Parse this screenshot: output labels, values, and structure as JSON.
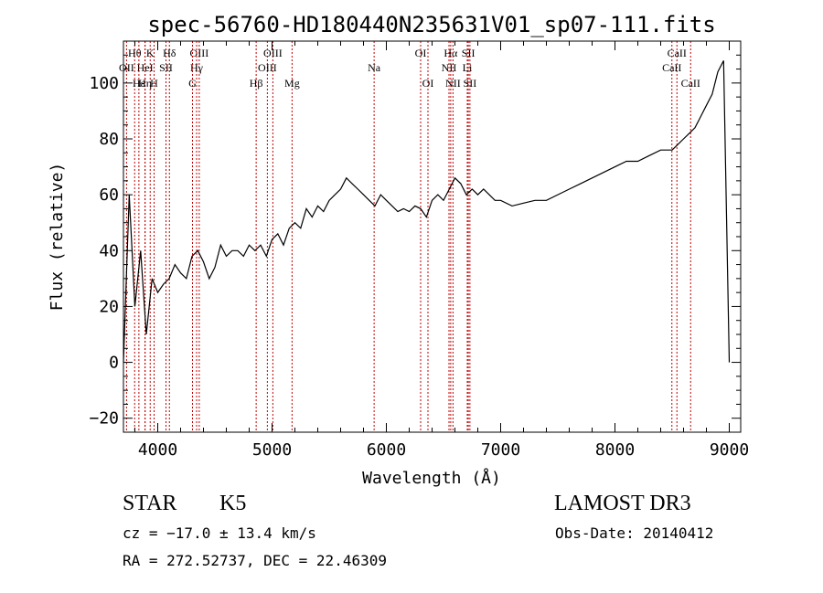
{
  "chart_data": {
    "type": "line",
    "title": "spec-56760-HD180440N235631V01_sp07-111.fits",
    "xlabel": "Wavelength (Å)",
    "ylabel": "Flux (relative)",
    "xlim": [
      3700,
      9100
    ],
    "ylim": [
      -25,
      115
    ],
    "xticks": [
      4000,
      5000,
      6000,
      7000,
      8000,
      9000
    ],
    "yticks": [
      -20,
      0,
      20,
      40,
      60,
      80,
      100
    ],
    "grid": false,
    "series": [
      {
        "name": "flux",
        "x": [
          3700,
          3750,
          3800,
          3850,
          3900,
          3950,
          4000,
          4050,
          4100,
          4150,
          4200,
          4250,
          4300,
          4350,
          4400,
          4450,
          4500,
          4550,
          4600,
          4650,
          4700,
          4750,
          4800,
          4850,
          4900,
          4950,
          5000,
          5050,
          5100,
          5150,
          5200,
          5250,
          5300,
          5350,
          5400,
          5450,
          5500,
          5550,
          5600,
          5650,
          5700,
          5750,
          5800,
          5850,
          5900,
          5950,
          6000,
          6050,
          6100,
          6150,
          6200,
          6250,
          6300,
          6350,
          6400,
          6450,
          6500,
          6550,
          6600,
          6650,
          6700,
          6750,
          6800,
          6850,
          6900,
          6950,
          7000,
          7100,
          7200,
          7300,
          7400,
          7500,
          7600,
          7700,
          7800,
          7900,
          8000,
          8100,
          8200,
          8300,
          8400,
          8500,
          8550,
          8600,
          8650,
          8700,
          8750,
          8800,
          8850,
          8900,
          8950,
          9000
        ],
        "y": [
          0,
          60,
          20,
          40,
          10,
          30,
          25,
          28,
          30,
          35,
          32,
          30,
          38,
          40,
          36,
          30,
          34,
          42,
          38,
          40,
          40,
          38,
          42,
          40,
          42,
          38,
          44,
          46,
          42,
          48,
          50,
          48,
          55,
          52,
          56,
          54,
          58,
          60,
          62,
          66,
          64,
          62,
          60,
          58,
          56,
          60,
          58,
          56,
          54,
          55,
          54,
          56,
          55,
          52,
          58,
          60,
          58,
          62,
          66,
          64,
          60,
          62,
          60,
          62,
          60,
          58,
          58,
          56,
          57,
          58,
          58,
          60,
          62,
          64,
          66,
          68,
          70,
          72,
          72,
          74,
          76,
          76,
          78,
          80,
          82,
          84,
          88,
          92,
          96,
          104,
          108,
          0
        ]
      }
    ],
    "spectral_lines": [
      {
        "label": "Hθ",
        "x": 3798,
        "row": 1
      },
      {
        "label": "K",
        "x": 3934,
        "row": 1
      },
      {
        "label": "Hδ",
        "x": 4102,
        "row": 1
      },
      {
        "label": "OIII",
        "x": 4363,
        "row": 1
      },
      {
        "label": "OIII",
        "x": 5007,
        "row": 1
      },
      {
        "label": "OI",
        "x": 6300,
        "row": 1
      },
      {
        "label": "Hα",
        "x": 6563,
        "row": 1
      },
      {
        "label": "SII",
        "x": 6717,
        "row": 1
      },
      {
        "label": "CaII",
        "x": 8542,
        "row": 1
      },
      {
        "label": "OII",
        "x": 3727,
        "row": 2
      },
      {
        "label": "HeI",
        "x": 3889,
        "row": 2
      },
      {
        "label": "SII",
        "x": 4072,
        "row": 2
      },
      {
        "label": "Hγ",
        "x": 4340,
        "row": 2
      },
      {
        "label": "OIII",
        "x": 4959,
        "row": 2
      },
      {
        "label": "Na",
        "x": 5893,
        "row": 2
      },
      {
        "label": "NII",
        "x": 6548,
        "row": 2
      },
      {
        "label": "Li",
        "x": 6708,
        "row": 2
      },
      {
        "label": "CaII",
        "x": 8498,
        "row": 2
      },
      {
        "label": "Hε",
        "x": 3835,
        "row": 3
      },
      {
        "label": "Hη",
        "x": 3889,
        "row": 3
      },
      {
        "label": "H",
        "x": 3968,
        "row": 3
      },
      {
        "label": "G",
        "x": 4304,
        "row": 3
      },
      {
        "label": "Hβ",
        "x": 4861,
        "row": 3
      },
      {
        "label": "Mg",
        "x": 5175,
        "row": 3
      },
      {
        "label": "OI",
        "x": 6364,
        "row": 3
      },
      {
        "label": "NII",
        "x": 6583,
        "row": 3
      },
      {
        "label": "SII",
        "x": 6731,
        "row": 3
      },
      {
        "label": "CaII",
        "x": 8662,
        "row": 3
      }
    ]
  },
  "info": {
    "object_type": "STAR",
    "subclass": "K5",
    "survey": "LAMOST DR3",
    "cz": "cz = −17.0 ± 13.4 km/s",
    "obs_date": "Obs-Date: 20140412",
    "coords": "RA = 272.52737, DEC =  22.46309"
  }
}
